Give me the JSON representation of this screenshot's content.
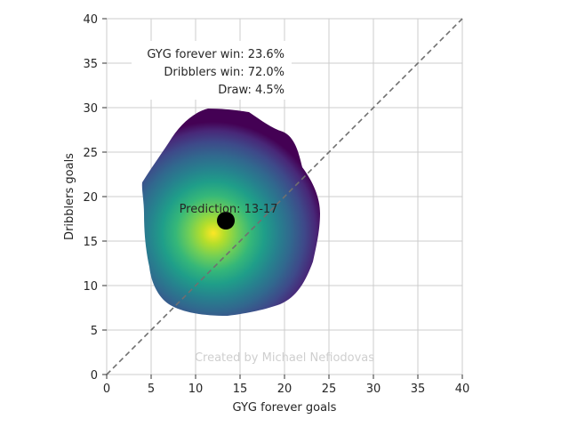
{
  "chart_data": {
    "type": "heatmap",
    "title": "",
    "xlabel": "GYG forever goals",
    "ylabel": "Dribblers goals",
    "xlim": [
      0,
      40
    ],
    "ylim": [
      0,
      40
    ],
    "x_ticks": [
      0,
      5,
      10,
      15,
      20,
      25,
      30,
      35,
      40
    ],
    "y_ticks": [
      0,
      5,
      10,
      15,
      20,
      25,
      30,
      35,
      40
    ],
    "grid": true,
    "colormap": "viridis",
    "density_peak": [
      12,
      16
    ],
    "density_extent": {
      "x": [
        4,
        24
      ],
      "y": [
        7,
        30
      ]
    },
    "diagonal_line": {
      "from": [
        0,
        0
      ],
      "to": [
        40,
        40
      ],
      "style": "dashed",
      "color": "#777777"
    },
    "prediction": {
      "x": 13.4,
      "y": 17.3,
      "label": "Prediction: 13-17"
    },
    "stats": [
      {
        "label": "GYG forever win: 23.6%"
      },
      {
        "label": "Dribblers win: 72.0%"
      },
      {
        "label": "Draw: 4.5%"
      }
    ],
    "watermark": "Created by Michael Nefiodovas"
  }
}
